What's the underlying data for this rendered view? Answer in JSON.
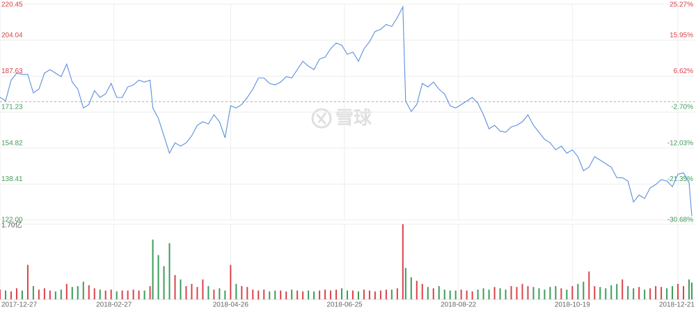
{
  "chart_data": [
    {
      "type": "line",
      "watermark": "雪球",
      "x": [
        0,
        2,
        4,
        6,
        8,
        10,
        12,
        14,
        16,
        18,
        20,
        22,
        24,
        26,
        28,
        30,
        32,
        34,
        36,
        38,
        40,
        42,
        44,
        46,
        48,
        50,
        52,
        54,
        55,
        57,
        59,
        61,
        63,
        65,
        67,
        69,
        71,
        73,
        75,
        77,
        79,
        81,
        83,
        85,
        87,
        89,
        91,
        93,
        95,
        97,
        99,
        101,
        103,
        105,
        107,
        109,
        111,
        113,
        115,
        117,
        119,
        121,
        123,
        125,
        127,
        129,
        131,
        133,
        135,
        137,
        139,
        141,
        143,
        145,
        146,
        148,
        150,
        152,
        154,
        156,
        158,
        160,
        162,
        164,
        166,
        168,
        170,
        172,
        174,
        176,
        178,
        180,
        182,
        184,
        186,
        188,
        190,
        192,
        194,
        196,
        198,
        200,
        202,
        204,
        206,
        208,
        210,
        212,
        214,
        216,
        218,
        220,
        222,
        224,
        226,
        228,
        230,
        232,
        234,
        236,
        238,
        240,
        242,
        244,
        246,
        248,
        249
      ],
      "xlim": [
        0,
        250
      ],
      "xticks": [
        {
          "value": 0,
          "label": "2017-12-27"
        },
        {
          "value": 41,
          "label": "2018-02-27"
        },
        {
          "value": 83,
          "label": "2018-04-26"
        },
        {
          "value": 124,
          "label": "2018-06-25"
        },
        {
          "value": 165,
          "label": "2018-08-22"
        },
        {
          "value": 206,
          "label": "2018-10-19"
        },
        {
          "value": 244,
          "label": "2018-12-21"
        }
      ],
      "ylim": [
        122.0,
        220.45
      ],
      "yticks": [
        {
          "value": 220.45,
          "label": "220.45"
        },
        {
          "value": 204.04,
          "label": "204.04"
        },
        {
          "value": 187.63,
          "label": "187.63"
        },
        {
          "value": 171.23,
          "label": "171.23"
        },
        {
          "value": 154.82,
          "label": "154.82"
        },
        {
          "value": 138.41,
          "label": "138.41"
        },
        {
          "value": 122.0,
          "label": "122.00"
        }
      ],
      "y2lim": [
        -30.68,
        25.27
      ],
      "y2ticks": [
        {
          "value": 25.27,
          "label": "25.27%"
        },
        {
          "value": 15.95,
          "label": "15.95%"
        },
        {
          "value": 6.62,
          "label": "6.62%"
        },
        {
          "value": -2.7,
          "label": "-2.70%"
        },
        {
          "value": -12.03,
          "label": "-12.03%"
        },
        {
          "value": -21.35,
          "label": "-21.35%"
        },
        {
          "value": -30.68,
          "label": "-30.68%"
        }
      ],
      "grid": true,
      "up_color": "#d9434a",
      "down_color": "#3e9b5c",
      "series": [
        {
          "name": "price",
          "color": "#5a8fdc",
          "values": [
            178,
            176.3,
            185.8,
            189,
            188.4,
            188.4,
            180,
            181.7,
            189,
            190.6,
            189,
            187.4,
            193.1,
            184.9,
            181.7,
            173.1,
            174.7,
            181,
            177.9,
            179.5,
            184.3,
            177.9,
            177.9,
            182.7,
            183.6,
            185.8,
            184.9,
            185.8,
            173.1,
            168.4,
            160.4,
            152.5,
            157.2,
            155.7,
            157.2,
            160.4,
            165.2,
            166.8,
            165.8,
            170,
            166.8,
            159.5,
            174.1,
            173.1,
            174.7,
            177.9,
            181.7,
            186.8,
            186.8,
            184.3,
            183.6,
            184.9,
            187.4,
            186.8,
            190.6,
            194.4,
            192.2,
            190.6,
            195.4,
            196.3,
            200.1,
            202.7,
            201.7,
            197.6,
            198.6,
            194.4,
            200.1,
            203.3,
            208,
            209,
            211.2,
            210.3,
            214.4,
            219.2,
            176.3,
            171.5,
            174.7,
            184.3,
            182.7,
            184.9,
            181.7,
            179.5,
            174.1,
            173.1,
            174.7,
            176.3,
            177.9,
            175.3,
            170,
            163.6,
            165.2,
            162.6,
            162,
            164.5,
            165.2,
            166.8,
            170,
            165.2,
            162,
            158.8,
            157.2,
            154,
            155.7,
            152.5,
            154,
            150.9,
            144.5,
            146.1,
            150.9,
            149.3,
            147.7,
            146.1,
            141.3,
            141.3,
            139.8,
            130.2,
            133.4,
            131.8,
            136.6,
            138.2,
            140.4,
            139.8,
            137.2,
            142.9,
            143.5,
            139.1,
            123.9
          ]
        }
      ]
    },
    {
      "type": "bar",
      "ylim": [
        0,
        1.7
      ],
      "yticks": [
        {
          "value": 1.7,
          "label": "1.70亿"
        }
      ],
      "series": [
        {
          "name": "volume",
          "values": [
            0.22,
            0.2,
            0.18,
            0.25,
            0.2,
            0.78,
            0.3,
            0.22,
            0.25,
            0.2,
            0.18,
            0.22,
            0.35,
            0.28,
            0.3,
            0.4,
            0.32,
            0.25,
            0.22,
            0.2,
            0.22,
            0.18,
            0.2,
            0.2,
            0.22,
            0.2,
            0.2,
            0.3,
            1.35,
            1.0,
            0.75,
            1.27,
            0.55,
            0.45,
            0.3,
            0.35,
            0.28,
            0.45,
            0.3,
            0.22,
            0.25,
            0.2,
            0.78,
            0.35,
            0.3,
            0.28,
            0.22,
            0.2,
            0.22,
            0.18,
            0.2,
            0.2,
            0.18,
            0.22,
            0.2,
            0.18,
            0.2,
            0.18,
            0.2,
            0.22,
            0.2,
            0.22,
            0.25,
            0.2,
            0.2,
            0.18,
            0.22,
            0.2,
            0.18,
            0.2,
            0.22,
            0.22,
            0.25,
            1.7,
            0.71,
            0.5,
            0.42,
            0.35,
            0.28,
            0.25,
            0.3,
            0.22,
            0.2,
            0.2,
            0.22,
            0.2,
            0.18,
            0.22,
            0.25,
            0.22,
            0.28,
            0.25,
            0.22,
            0.3,
            0.28,
            0.35,
            0.3,
            0.28,
            0.25,
            0.22,
            0.28,
            0.3,
            0.25,
            0.22,
            0.3,
            0.35,
            0.4,
            0.63,
            0.3,
            0.28,
            0.25,
            0.32,
            0.35,
            0.45,
            0.3,
            0.25,
            0.28,
            0.22,
            0.25,
            0.3,
            0.28,
            0.25,
            0.3,
            0.35,
            0.3,
            0.45,
            0.38
          ]
        }
      ]
    }
  ]
}
